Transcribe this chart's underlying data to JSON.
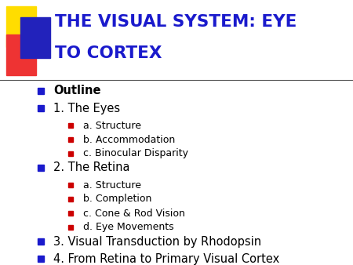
{
  "title_line1": "THE VISUAL SYSTEM: EYE",
  "title_line2": "TO CORTEX",
  "title_color": "#1a1acc",
  "bg_color": "#ffffff",
  "separator_color": "#555555",
  "bullet_color_large": "#1a1acc",
  "bullet_color_small": "#cc0000",
  "items": [
    {
      "level": 1,
      "text": "Outline",
      "bold": true
    },
    {
      "level": 1,
      "text": "1. The Eyes",
      "bold": false
    },
    {
      "level": 2,
      "text": "a. Structure",
      "bold": false
    },
    {
      "level": 2,
      "text": "b. Accommodation",
      "bold": false
    },
    {
      "level": 2,
      "text": "c. Binocular Disparity",
      "bold": false
    },
    {
      "level": 1,
      "text": "2. The Retina",
      "bold": false
    },
    {
      "level": 2,
      "text": "a. Structure",
      "bold": false
    },
    {
      "level": 2,
      "text": "b. Completion",
      "bold": false
    },
    {
      "level": 2,
      "text": "c. Cone & Rod Vision",
      "bold": false
    },
    {
      "level": 2,
      "text": "d. Eye Movements",
      "bold": false
    },
    {
      "level": 1,
      "text": "3. Visual Transduction by Rhodopsin",
      "bold": false
    },
    {
      "level": 1,
      "text": "4. From Retina to Primary Visual Cortex",
      "bold": false
    }
  ]
}
